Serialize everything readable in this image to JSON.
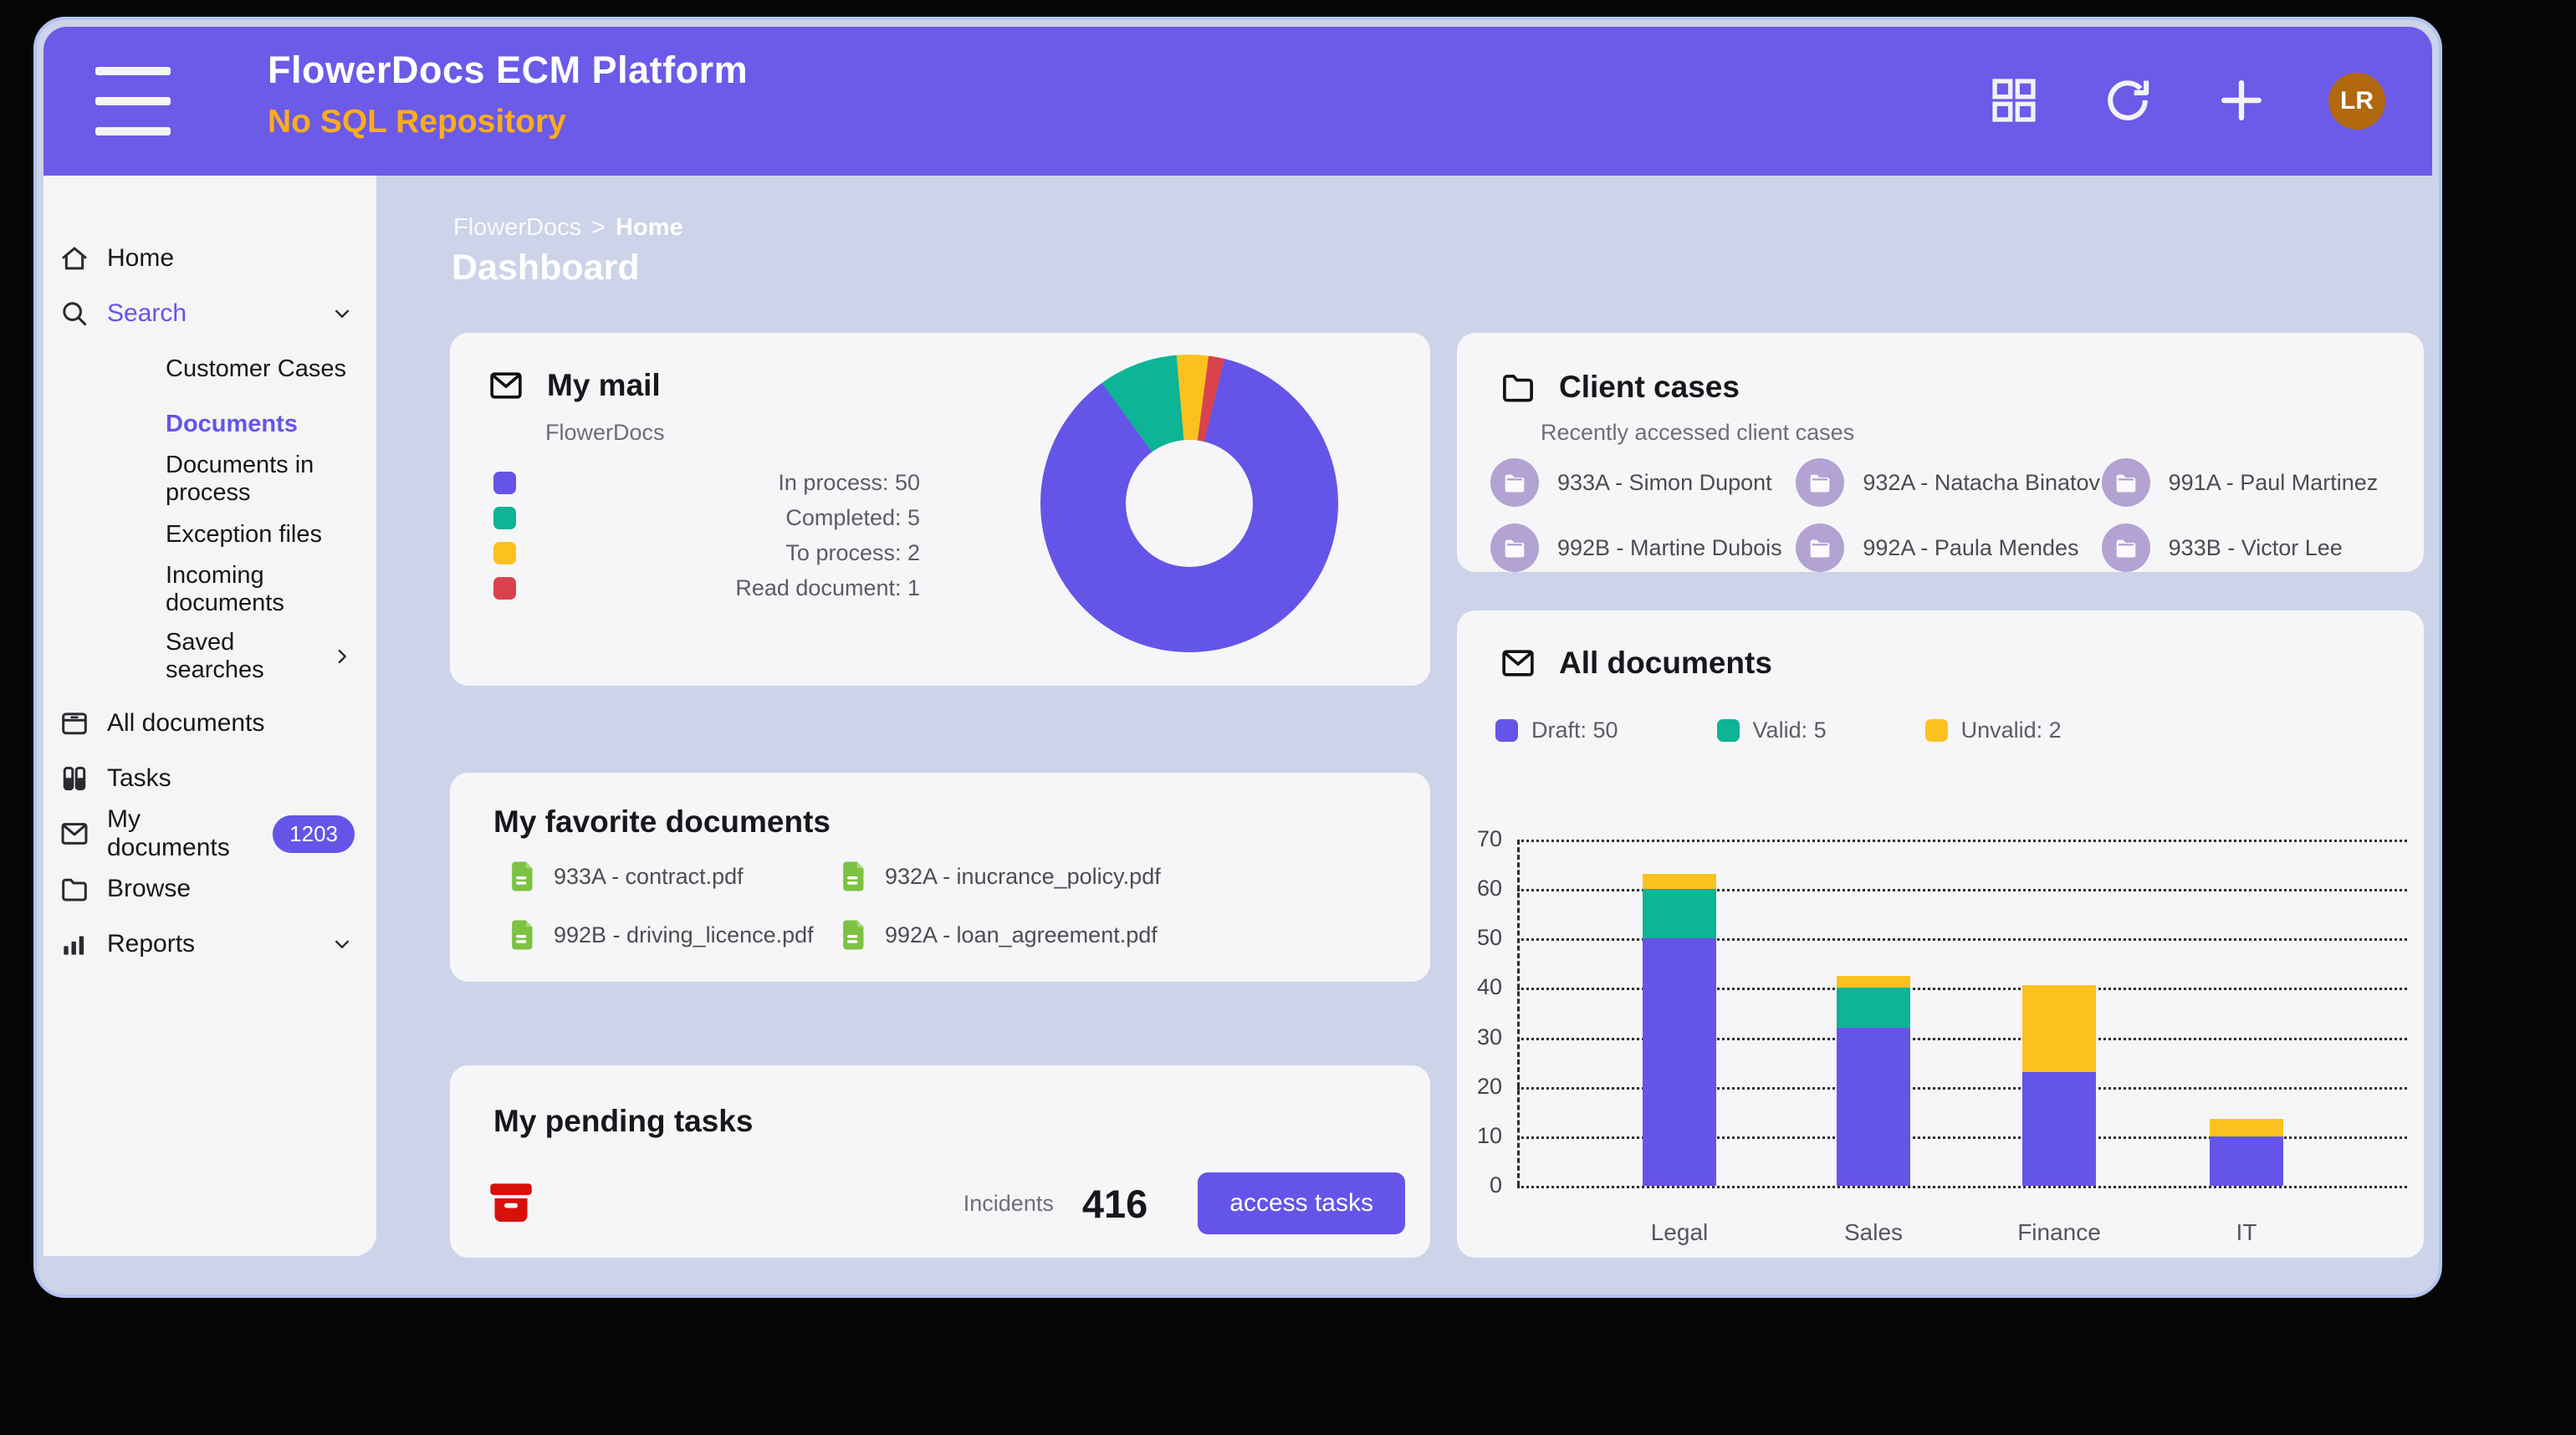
{
  "colors": {
    "accent": "#6554e8",
    "header_purple": "#6c5ae8",
    "teal": "#0db495",
    "yellow": "#fcc11e",
    "red": "#d9434e",
    "amber": "#f9ad1c",
    "avatar_bg": "#b1680f",
    "case_circle": "#b2a3d2",
    "doc_green": "#7dc242",
    "task_red": "#d8100c",
    "app_bg": "#cdd3e8",
    "card_bg": "#f6f6f8"
  },
  "header": {
    "title": "FlowerDocs ECM Platform",
    "subtitle": "No SQL Repository",
    "avatar_initials": "LR",
    "icons": [
      "hamburger-icon",
      "grid-icon",
      "refresh-icon",
      "plus-icon"
    ]
  },
  "breadcrumb": {
    "root": "FlowerDocs",
    "separator": ">",
    "current": "Home"
  },
  "page_title": "Dashboard",
  "sidebar": {
    "items": [
      {
        "label": "Home",
        "icon": "home",
        "type": "item"
      },
      {
        "label": "Search",
        "icon": "search",
        "type": "item",
        "accent": true,
        "chevron": "down"
      },
      {
        "label": "Customer Cases",
        "type": "sub"
      },
      {
        "label": "Documents",
        "type": "sub",
        "active": true
      },
      {
        "label": "Documents in process",
        "type": "sub"
      },
      {
        "label": "Exception files",
        "type": "sub"
      },
      {
        "label": "Incoming documents",
        "type": "sub"
      },
      {
        "label": "Saved searches",
        "type": "sub",
        "chevron": "right",
        "gap": true
      },
      {
        "label": "All documents",
        "icon": "archive",
        "type": "item",
        "gap": true
      },
      {
        "label": "Tasks",
        "icon": "tasks",
        "type": "item"
      },
      {
        "label": "My documents",
        "icon": "mail",
        "type": "item",
        "badge": "1203"
      },
      {
        "label": "Browse",
        "icon": "folder",
        "type": "item"
      },
      {
        "label": "Reports",
        "icon": "bar-chart",
        "type": "item",
        "chevron": "down"
      }
    ]
  },
  "cards": {
    "mail": {
      "title": "My mail",
      "subtitle": "FlowerDocs"
    },
    "client_cases": {
      "title": "Client cases",
      "subtitle": "Recently accessed client cases",
      "cases": [
        "933A - Simon Dupont",
        "932A - Natacha Binatov",
        "991A - Paul Martinez",
        "992B - Martine Dubois",
        "992A - Paula Mendes",
        "933B - Victor Lee"
      ]
    },
    "favorites": {
      "title": "My favorite documents",
      "documents": [
        "933A - contract.pdf",
        "932A - inucrance_policy.pdf",
        "992B - driving_licence.pdf",
        "992A - loan_agreement.pdf"
      ]
    },
    "pending": {
      "title": "My pending tasks",
      "metric_label": "Incidents",
      "metric_value": "416",
      "button_label": "access tasks"
    },
    "all_documents": {
      "title": "All documents"
    }
  },
  "chart_data": [
    {
      "type": "pie",
      "donut": true,
      "title": "My mail",
      "legend_position": "left",
      "start_angle_deg": -36,
      "segments": [
        {
          "label": "In process",
          "value": 50,
          "color": "#6554e8"
        },
        {
          "label": "Completed",
          "value": 5,
          "color": "#0db495"
        },
        {
          "label": "To process",
          "value": 2,
          "color": "#fcc11e"
        },
        {
          "label": "Read document",
          "value": 1,
          "color": "#d9434e"
        }
      ],
      "draw_order": [
        1,
        2,
        3,
        0
      ]
    },
    {
      "type": "bar",
      "stacked": true,
      "title": "All documents",
      "categories": [
        "Legal",
        "Sales",
        "Finance",
        "IT"
      ],
      "series": [
        {
          "name": "Draft",
          "color": "#6554e8",
          "values": [
            50,
            32,
            23,
            10
          ]
        },
        {
          "name": "Valid",
          "color": "#0db495",
          "values": [
            10,
            8,
            0,
            0
          ]
        },
        {
          "name": "Unvalid",
          "color": "#fcc11e",
          "values": [
            3,
            2.5,
            17.5,
            3.5
          ]
        }
      ],
      "legend": [
        {
          "label": "Draft",
          "value": 50,
          "color": "#6554e8"
        },
        {
          "label": "Valid",
          "value": 5,
          "color": "#0db495"
        },
        {
          "label": "Unvalid",
          "value": 2,
          "color": "#fcc11e"
        }
      ],
      "xlabel": "",
      "ylabel": "",
      "ylim": [
        0,
        70
      ],
      "yticks": [
        0,
        10,
        20,
        30,
        40,
        50,
        60,
        70
      ],
      "grid": "dotted-horizontal, dashed-y-axis"
    }
  ]
}
